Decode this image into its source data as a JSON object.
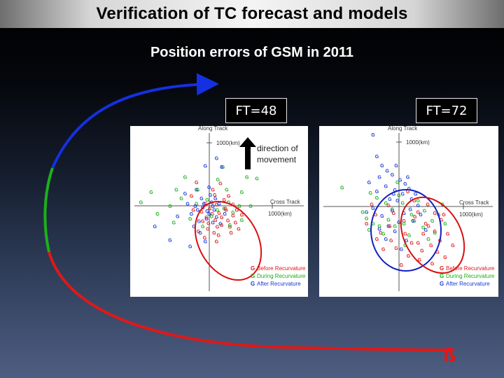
{
  "slide": {
    "title": "Verification of TC forecast and models",
    "subtitle": "Position errors of GSM in 2011",
    "direction_label_line1": "direction of",
    "direction_label_line2": "movement"
  },
  "colors": {
    "before_recurvature": "#e01818",
    "during_recurvature": "#18b018",
    "after_recurvature": "#1838d8",
    "ellipse_before": "#d81010",
    "ellipse_after": "#1020c0"
  },
  "chart_data": [
    {
      "type": "scatter",
      "title": "FT=48",
      "axis_labels": {
        "y": "Along Track",
        "x": "Cross Track"
      },
      "tick_labels": {
        "y": "1000(km)",
        "x": "1000(km)"
      },
      "xlim": [
        -1500,
        1500
      ],
      "ylim": [
        -1500,
        1500
      ],
      "marker_glyph": "G",
      "legend": [
        "Before Recurvature",
        "During Recurvature",
        "After Recurvature"
      ],
      "legend_position": "bottom-right",
      "series": [
        {
          "name": "Before Recurvature",
          "color": "#e01818",
          "points": [
            [
              120,
              20
            ],
            [
              260,
              -40
            ],
            [
              380,
              -150
            ],
            [
              420,
              -260
            ],
            [
              330,
              -330
            ],
            [
              200,
              -300
            ],
            [
              100,
              -220
            ],
            [
              50,
              -120
            ],
            [
              -40,
              -180
            ],
            [
              -120,
              -90
            ],
            [
              160,
              -110
            ],
            [
              300,
              -230
            ],
            [
              470,
              -360
            ],
            [
              150,
              -460
            ],
            [
              -20,
              -360
            ],
            [
              240,
              100
            ],
            [
              90,
              180
            ],
            [
              -200,
              380
            ],
            [
              80,
              -420
            ],
            [
              -280,
              160
            ],
            [
              380,
              30
            ],
            [
              520,
              -140
            ],
            [
              -100,
              -240
            ],
            [
              10,
              -40
            ],
            [
              200,
              -180
            ],
            [
              -60,
              40
            ],
            [
              310,
              160
            ],
            [
              440,
              -60
            ],
            [
              -10,
              -270
            ],
            [
              130,
              -330
            ],
            [
              -170,
              -400
            ],
            [
              60,
              260
            ],
            [
              350,
              -420
            ],
            [
              -250,
              -60
            ],
            [
              180,
              360
            ],
            [
              120,
              -560
            ],
            [
              -70,
              -500
            ],
            [
              270,
              -60
            ]
          ]
        },
        {
          "name": "During Recurvature",
          "color": "#18b018",
          "points": [
            [
              -1080,
              60
            ],
            [
              -920,
              220
            ],
            [
              -620,
              0
            ],
            [
              -520,
              260
            ],
            [
              -380,
              460
            ],
            [
              -180,
              260
            ],
            [
              240,
              -40
            ],
            [
              380,
              -100
            ],
            [
              520,
              -220
            ],
            [
              310,
              60
            ],
            [
              600,
              460
            ],
            [
              760,
              440
            ],
            [
              -300,
              -200
            ],
            [
              -100,
              -320
            ],
            [
              130,
              -60
            ],
            [
              480,
              0
            ],
            [
              -820,
              -120
            ],
            [
              220,
              620
            ],
            [
              660,
              0
            ],
            [
              -440,
              120
            ],
            [
              40,
              -160
            ],
            [
              330,
              -300
            ],
            [
              -200,
              40
            ],
            [
              140,
              420
            ],
            [
              -560,
              -260
            ],
            [
              520,
              220
            ],
            [
              -30,
              100
            ],
            [
              280,
              260
            ]
          ]
        },
        {
          "name": "After Recurvature",
          "color": "#1838d8",
          "points": [
            [
              -80,
              40
            ],
            [
              -180,
              -60
            ],
            [
              0,
              -120
            ],
            [
              80,
              -60
            ],
            [
              -120,
              120
            ],
            [
              40,
              60
            ],
            [
              -220,
              0
            ],
            [
              -40,
              -200
            ],
            [
              120,
              -170
            ],
            [
              -160,
              -240
            ],
            [
              -240,
              -320
            ],
            [
              -60,
              640
            ],
            [
              120,
              760
            ],
            [
              200,
              620
            ],
            [
              -380,
              200
            ],
            [
              -620,
              -540
            ],
            [
              -860,
              -320
            ],
            [
              20,
              180
            ],
            [
              -100,
              -20
            ],
            [
              60,
              -260
            ],
            [
              -30,
              -80
            ],
            [
              160,
              40
            ],
            [
              -280,
              -120
            ],
            [
              -200,
              260
            ],
            [
              100,
              120
            ],
            [
              -140,
              -420
            ],
            [
              0,
              300
            ],
            [
              -500,
              -160
            ],
            [
              -300,
              -640
            ],
            [
              180,
              -280
            ],
            [
              -60,
              -560
            ],
            [
              250,
              -120
            ],
            [
              -340,
              40
            ],
            [
              60,
              0
            ]
          ]
        }
      ]
    },
    {
      "type": "scatter",
      "title": "FT=72",
      "axis_labels": {
        "y": "Along Track",
        "x": "Cross Track"
      },
      "tick_labels": {
        "y": "1000(km)",
        "x": "1000(km)"
      },
      "xlim": [
        -1500,
        1500
      ],
      "ylim": [
        -1500,
        1500
      ],
      "marker_glyph": "G",
      "legend": [
        "Before Recurvature",
        "During Recurvature",
        "After Recurvature"
      ],
      "legend_position": "bottom-right",
      "series": [
        {
          "name": "Before Recurvature",
          "color": "#e01818",
          "points": [
            [
              250,
              -150
            ],
            [
              420,
              -260
            ],
            [
              560,
              -380
            ],
            [
              640,
              -520
            ],
            [
              500,
              -600
            ],
            [
              360,
              -680
            ],
            [
              200,
              -560
            ],
            [
              100,
              -420
            ],
            [
              -120,
              -520
            ],
            [
              -280,
              -400
            ],
            [
              300,
              -80
            ],
            [
              450,
              40
            ],
            [
              660,
              -200
            ],
            [
              760,
              -420
            ],
            [
              -140,
              -300
            ],
            [
              80,
              -220
            ],
            [
              -360,
              -120
            ],
            [
              320,
              -820
            ],
            [
              150,
              -760
            ],
            [
              520,
              -880
            ],
            [
              -40,
              -640
            ],
            [
              700,
              -120
            ],
            [
              -500,
              -260
            ],
            [
              240,
              100
            ],
            [
              600,
              -700
            ],
            [
              380,
              -420
            ],
            [
              -80,
              -100
            ],
            [
              140,
              240
            ],
            [
              -240,
              -660
            ],
            [
              460,
              -300
            ],
            [
              40,
              -900
            ],
            [
              840,
              -600
            ],
            [
              -340,
              -500
            ],
            [
              300,
              -560
            ],
            [
              -160,
              20
            ],
            [
              720,
              -780
            ],
            [
              560,
              -100
            ],
            [
              -420,
              40
            ]
          ]
        },
        {
          "name": "During Recurvature",
          "color": "#18b018",
          "points": [
            [
              -500,
              -180
            ],
            [
              -400,
              -260
            ],
            [
              -300,
              -300
            ],
            [
              -160,
              -200
            ],
            [
              -60,
              -300
            ],
            [
              80,
              -260
            ],
            [
              240,
              -220
            ],
            [
              380,
              -320
            ],
            [
              520,
              -220
            ],
            [
              620,
              -120
            ],
            [
              -200,
              60
            ],
            [
              60,
              60
            ],
            [
              300,
              100
            ],
            [
              -560,
              -80
            ],
            [
              -460,
              -360
            ],
            [
              160,
              -440
            ],
            [
              460,
              -500
            ],
            [
              -880,
              300
            ],
            [
              -440,
              220
            ],
            [
              -20,
              380
            ],
            [
              680,
              40
            ],
            [
              200,
              -120
            ],
            [
              -340,
              140
            ],
            [
              100,
              -600
            ],
            [
              560,
              -400
            ],
            [
              -100,
              -40
            ],
            [
              400,
              -60
            ],
            [
              -240,
              -420
            ],
            [
              0,
              180
            ],
            [
              720,
              -260
            ]
          ]
        },
        {
          "name": "After Recurvature",
          "color": "#1838d8",
          "points": [
            [
              -400,
              1120
            ],
            [
              -340,
              780
            ],
            [
              -260,
              640
            ],
            [
              -180,
              560
            ],
            [
              -100,
              500
            ],
            [
              -300,
              460
            ],
            [
              -460,
              380
            ],
            [
              20,
              420
            ],
            [
              100,
              360
            ],
            [
              -200,
              320
            ],
            [
              -340,
              240
            ],
            [
              -60,
              260
            ],
            [
              60,
              200
            ],
            [
              160,
              280
            ],
            [
              -140,
              120
            ],
            [
              -20,
              100
            ],
            [
              200,
              120
            ],
            [
              300,
              20
            ],
            [
              -100,
              -60
            ],
            [
              80,
              -100
            ],
            [
              -260,
              -140
            ],
            [
              220,
              -220
            ],
            [
              -60,
              -380
            ],
            [
              120,
              -520
            ],
            [
              -200,
              -500
            ],
            [
              0,
              -240
            ],
            [
              340,
              -120
            ],
            [
              -400,
              -20
            ],
            [
              260,
              200
            ],
            [
              -40,
              640
            ],
            [
              140,
              460
            ],
            [
              -500,
              -80
            ],
            [
              40,
              -660
            ],
            [
              -300,
              -340
            ],
            [
              420,
              -360
            ],
            [
              -160,
              -300
            ],
            [
              180,
              -40
            ],
            [
              -80,
              200
            ]
          ]
        }
      ]
    }
  ]
}
